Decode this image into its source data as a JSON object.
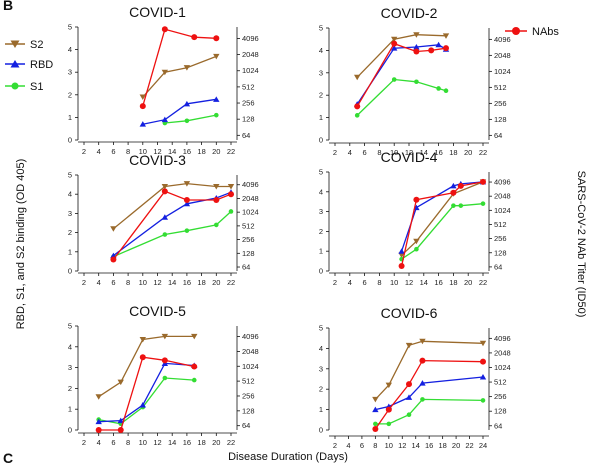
{
  "panel_labels": {
    "top": "B",
    "bottom": "C"
  },
  "legend": [
    {
      "key": "s2",
      "label": "S2",
      "color": "#9a6a2c",
      "marker": "triangle-down"
    },
    {
      "key": "rbd",
      "label": "RBD",
      "color": "#1420e0",
      "marker": "triangle-up"
    },
    {
      "key": "s1",
      "label": "S1",
      "color": "#33dd33",
      "marker": "circle"
    },
    {
      "key": "nab",
      "label": "NAbs",
      "color": "#ee1111",
      "marker": "circle"
    }
  ],
  "axes": {
    "xlabel": "Disease Duration (Days)",
    "ylabel_left": "RBD, S1, and S2 binding (OD 405)",
    "ylabel_right": "SARS-CoV-2 NAb Titer (ID50)"
  },
  "chart_data": [
    {
      "type": "line",
      "title": "COVID-1",
      "xlim": [
        2,
        22
      ],
      "x_ticks": [
        "2",
        "4",
        "6",
        "8",
        "10",
        "12",
        "14",
        "16",
        "18",
        "20",
        "22"
      ],
      "ylim": [
        0,
        5
      ],
      "y_ticks": [
        "0",
        "1",
        "2",
        "3",
        "4",
        "5"
      ],
      "y2_ticks": [
        "64",
        "128",
        "256",
        "512",
        "1024",
        "2048",
        "4096"
      ],
      "series": [
        {
          "key": "s2",
          "name": "S2",
          "x": [
            10,
            13,
            16,
            20
          ],
          "y": [
            1.9,
            3.0,
            3.2,
            3.7
          ]
        },
        {
          "key": "rbd",
          "name": "RBD",
          "x": [
            10,
            13,
            16,
            20
          ],
          "y": [
            0.7,
            0.9,
            1.6,
            1.8
          ]
        },
        {
          "key": "s1",
          "name": "S1",
          "x": [
            13,
            16,
            20
          ],
          "y": [
            0.75,
            0.85,
            1.1
          ]
        },
        {
          "key": "nab",
          "name": "NAbs",
          "x": [
            10,
            13,
            17,
            20
          ],
          "y": [
            1.5,
            4.9,
            4.55,
            4.5
          ]
        }
      ]
    },
    {
      "type": "line",
      "title": "COVID-2",
      "xlim": [
        2,
        22
      ],
      "x_ticks": [
        "2",
        "4",
        "6",
        "8",
        "10",
        "12",
        "14",
        "16",
        "18",
        "20",
        "22"
      ],
      "ylim": [
        0,
        5
      ],
      "y_ticks": [
        "0",
        "1",
        "2",
        "3",
        "4",
        "5"
      ],
      "y2_ticks": [
        "64",
        "128",
        "256",
        "512",
        "1024",
        "2048",
        "4096"
      ],
      "series": [
        {
          "key": "s2",
          "name": "S2",
          "x": [
            5,
            10,
            13,
            17
          ],
          "y": [
            2.8,
            4.5,
            4.7,
            4.65
          ]
        },
        {
          "key": "rbd",
          "name": "RBD",
          "x": [
            5,
            10,
            13,
            16,
            17
          ],
          "y": [
            1.6,
            4.1,
            4.15,
            4.25,
            4.05
          ]
        },
        {
          "key": "s1",
          "name": "S1",
          "x": [
            5,
            10,
            13,
            16,
            17
          ],
          "y": [
            1.1,
            2.7,
            2.6,
            2.3,
            2.2
          ]
        },
        {
          "key": "nab",
          "name": "NAbs",
          "x": [
            5,
            10,
            13,
            15,
            17
          ],
          "y": [
            1.5,
            4.3,
            3.95,
            4.0,
            4.1
          ]
        }
      ]
    },
    {
      "type": "line",
      "title": "COVID-3",
      "xlim": [
        2,
        22
      ],
      "x_ticks": [
        "2",
        "4",
        "6",
        "8",
        "10",
        "12",
        "14",
        "16",
        "18",
        "20",
        "22"
      ],
      "ylim": [
        0,
        5
      ],
      "y_ticks": [
        "0",
        "1",
        "2",
        "3",
        "4",
        "5"
      ],
      "y2_ticks": [
        "64",
        "128",
        "256",
        "512",
        "1024",
        "2048",
        "4096"
      ],
      "series": [
        {
          "key": "s2",
          "name": "S2",
          "x": [
            6,
            13,
            16,
            20,
            22
          ],
          "y": [
            2.2,
            4.4,
            4.55,
            4.4,
            4.4
          ]
        },
        {
          "key": "rbd",
          "name": "RBD",
          "x": [
            6,
            13,
            16,
            20,
            22
          ],
          "y": [
            0.8,
            2.8,
            3.5,
            3.8,
            4.1
          ]
        },
        {
          "key": "s1",
          "name": "S1",
          "x": [
            6,
            13,
            16,
            20,
            22
          ],
          "y": [
            0.75,
            1.9,
            2.1,
            2.4,
            3.1
          ]
        },
        {
          "key": "nab",
          "name": "NAbs",
          "x": [
            6,
            13,
            16,
            20,
            22
          ],
          "y": [
            0.6,
            4.15,
            3.7,
            3.7,
            4.0
          ]
        }
      ]
    },
    {
      "type": "line",
      "title": "COVID-4",
      "xlim": [
        2,
        22
      ],
      "x_ticks": [
        "2",
        "4",
        "6",
        "8",
        "10",
        "12",
        "14",
        "16",
        "18",
        "20",
        "22"
      ],
      "ylim": [
        0,
        5
      ],
      "y_ticks": [
        "0",
        "1",
        "2",
        "3",
        "4",
        "5"
      ],
      "y2_ticks": [
        "64",
        "128",
        "256",
        "512",
        "1024",
        "2048",
        "4096"
      ],
      "series": [
        {
          "key": "s2",
          "name": "S2",
          "x": [
            11,
            13,
            18,
            22
          ],
          "y": [
            0.8,
            1.5,
            3.9,
            4.5
          ]
        },
        {
          "key": "rbd",
          "name": "RBD",
          "x": [
            11,
            13,
            18,
            19,
            22
          ],
          "y": [
            1.0,
            3.2,
            4.3,
            4.4,
            4.5
          ]
        },
        {
          "key": "s1",
          "name": "S1",
          "x": [
            11,
            13,
            18,
            19,
            22
          ],
          "y": [
            0.6,
            1.1,
            3.3,
            3.3,
            3.4
          ]
        },
        {
          "key": "nab",
          "name": "NAbs",
          "x": [
            11,
            13,
            18,
            19,
            22
          ],
          "y": [
            0.25,
            3.6,
            3.95,
            4.3,
            4.5
          ]
        }
      ]
    },
    {
      "type": "line",
      "title": "COVID-5",
      "xlim": [
        2,
        22
      ],
      "x_ticks": [
        "2",
        "4",
        "6",
        "8",
        "10",
        "12",
        "14",
        "16",
        "18",
        "20",
        "22"
      ],
      "ylim": [
        0,
        5
      ],
      "y_ticks": [
        "0",
        "1",
        "2",
        "3",
        "4",
        "5"
      ],
      "y2_ticks": [
        "64",
        "128",
        "256",
        "512",
        "1024",
        "2048",
        "4096"
      ],
      "series": [
        {
          "key": "s2",
          "name": "S2",
          "x": [
            4,
            7,
            10,
            13,
            17
          ],
          "y": [
            1.6,
            2.3,
            4.35,
            4.5,
            4.5
          ]
        },
        {
          "key": "rbd",
          "name": "RBD",
          "x": [
            4,
            7,
            10,
            13,
            17
          ],
          "y": [
            0.4,
            0.45,
            1.2,
            3.2,
            3.1
          ]
        },
        {
          "key": "s1",
          "name": "S1",
          "x": [
            4,
            7,
            10,
            13,
            17
          ],
          "y": [
            0.5,
            0.3,
            1.1,
            2.5,
            2.4
          ]
        },
        {
          "key": "nab",
          "name": "NAbs",
          "x": [
            4,
            7,
            10,
            13,
            17
          ],
          "y": [
            0.0,
            0.0,
            3.5,
            3.35,
            3.05
          ]
        }
      ]
    },
    {
      "type": "line",
      "title": "COVID-6",
      "xlim": [
        2,
        24
      ],
      "x_ticks": [
        "2",
        "4",
        "6",
        "8",
        "10",
        "12",
        "14",
        "16",
        "18",
        "20",
        "22",
        "24"
      ],
      "ylim": [
        0,
        5
      ],
      "y_ticks": [
        "0",
        "1",
        "2",
        "3",
        "4",
        "5"
      ],
      "y2_ticks": [
        "64",
        "128",
        "256",
        "512",
        "1024",
        "2048",
        "4096"
      ],
      "series": [
        {
          "key": "s2",
          "name": "S2",
          "x": [
            8,
            10,
            13,
            15,
            24
          ],
          "y": [
            1.5,
            2.2,
            4.15,
            4.35,
            4.25
          ]
        },
        {
          "key": "rbd",
          "name": "RBD",
          "x": [
            8,
            10,
            13,
            15,
            24
          ],
          "y": [
            1.0,
            1.15,
            1.6,
            2.3,
            2.6
          ]
        },
        {
          "key": "s1",
          "name": "S1",
          "x": [
            8,
            10,
            13,
            15,
            24
          ],
          "y": [
            0.3,
            0.3,
            0.75,
            1.5,
            1.45
          ]
        },
        {
          "key": "nab",
          "name": "NAbs",
          "x": [
            8,
            10,
            13,
            15,
            24
          ],
          "y": [
            0.05,
            1.0,
            2.25,
            3.4,
            3.35
          ]
        }
      ]
    }
  ]
}
